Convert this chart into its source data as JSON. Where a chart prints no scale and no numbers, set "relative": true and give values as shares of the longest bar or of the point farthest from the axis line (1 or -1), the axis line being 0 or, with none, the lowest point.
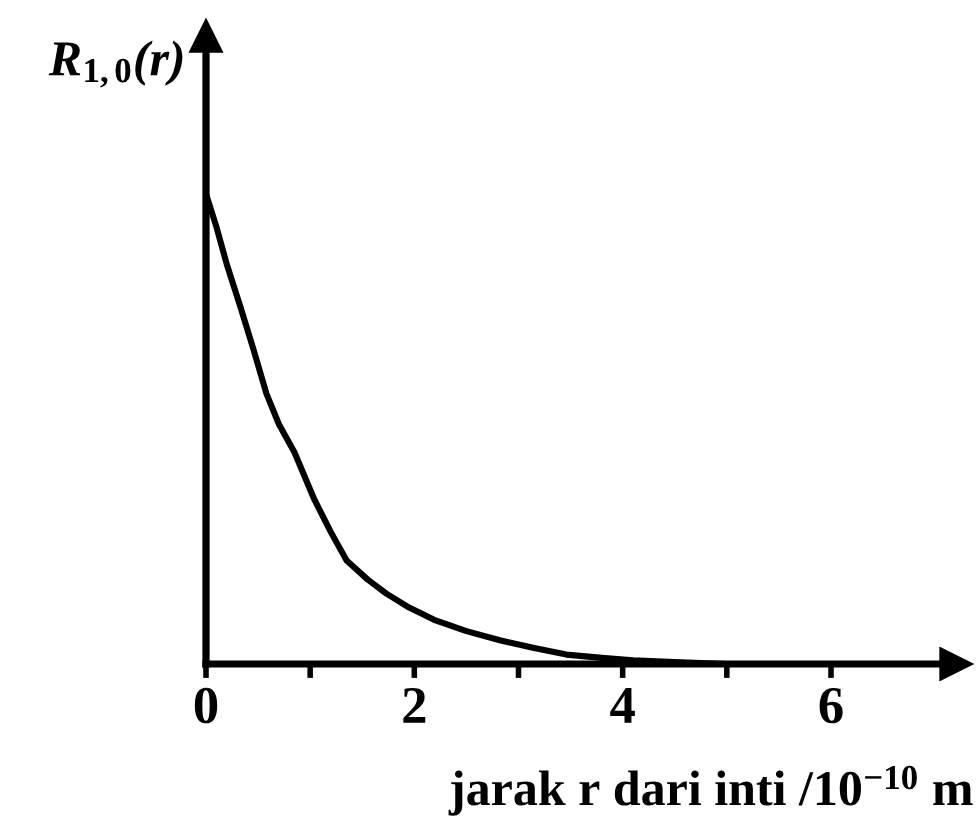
{
  "chart_data": {
    "type": "line",
    "relative": true,
    "ylabel": "R$_{1,0}$(r)",
    "xlabel": "jarak r dari inti /10$^{−10}$ m",
    "x": [
      0,
      0.1,
      0.2,
      0.33,
      0.455,
      0.58,
      0.7,
      0.85,
      1.04,
      1.2,
      1.35,
      1.55,
      1.73,
      1.95,
      2.19,
      2.5,
      2.83,
      3.15,
      3.46,
      3.8,
      4.1,
      4.5,
      5.0
    ],
    "values": [
      1,
      0.93,
      0.85,
      0.76,
      0.67,
      0.575,
      0.51,
      0.45,
      0.35,
      0.28,
      0.22,
      0.18,
      0.15,
      0.12,
      0.094,
      0.07,
      0.05,
      0.034,
      0.02,
      0.013,
      0.008,
      0.004,
      0
    ],
    "color": "#000000",
    "xlim": [
      0,
      7.2
    ],
    "xticks": [
      0,
      {
        "value": 1,
        "label": null
      },
      2,
      {
        "value": 3,
        "label": null
      },
      4,
      {
        "value": 5,
        "label": null
      },
      6
    ]
  }
}
